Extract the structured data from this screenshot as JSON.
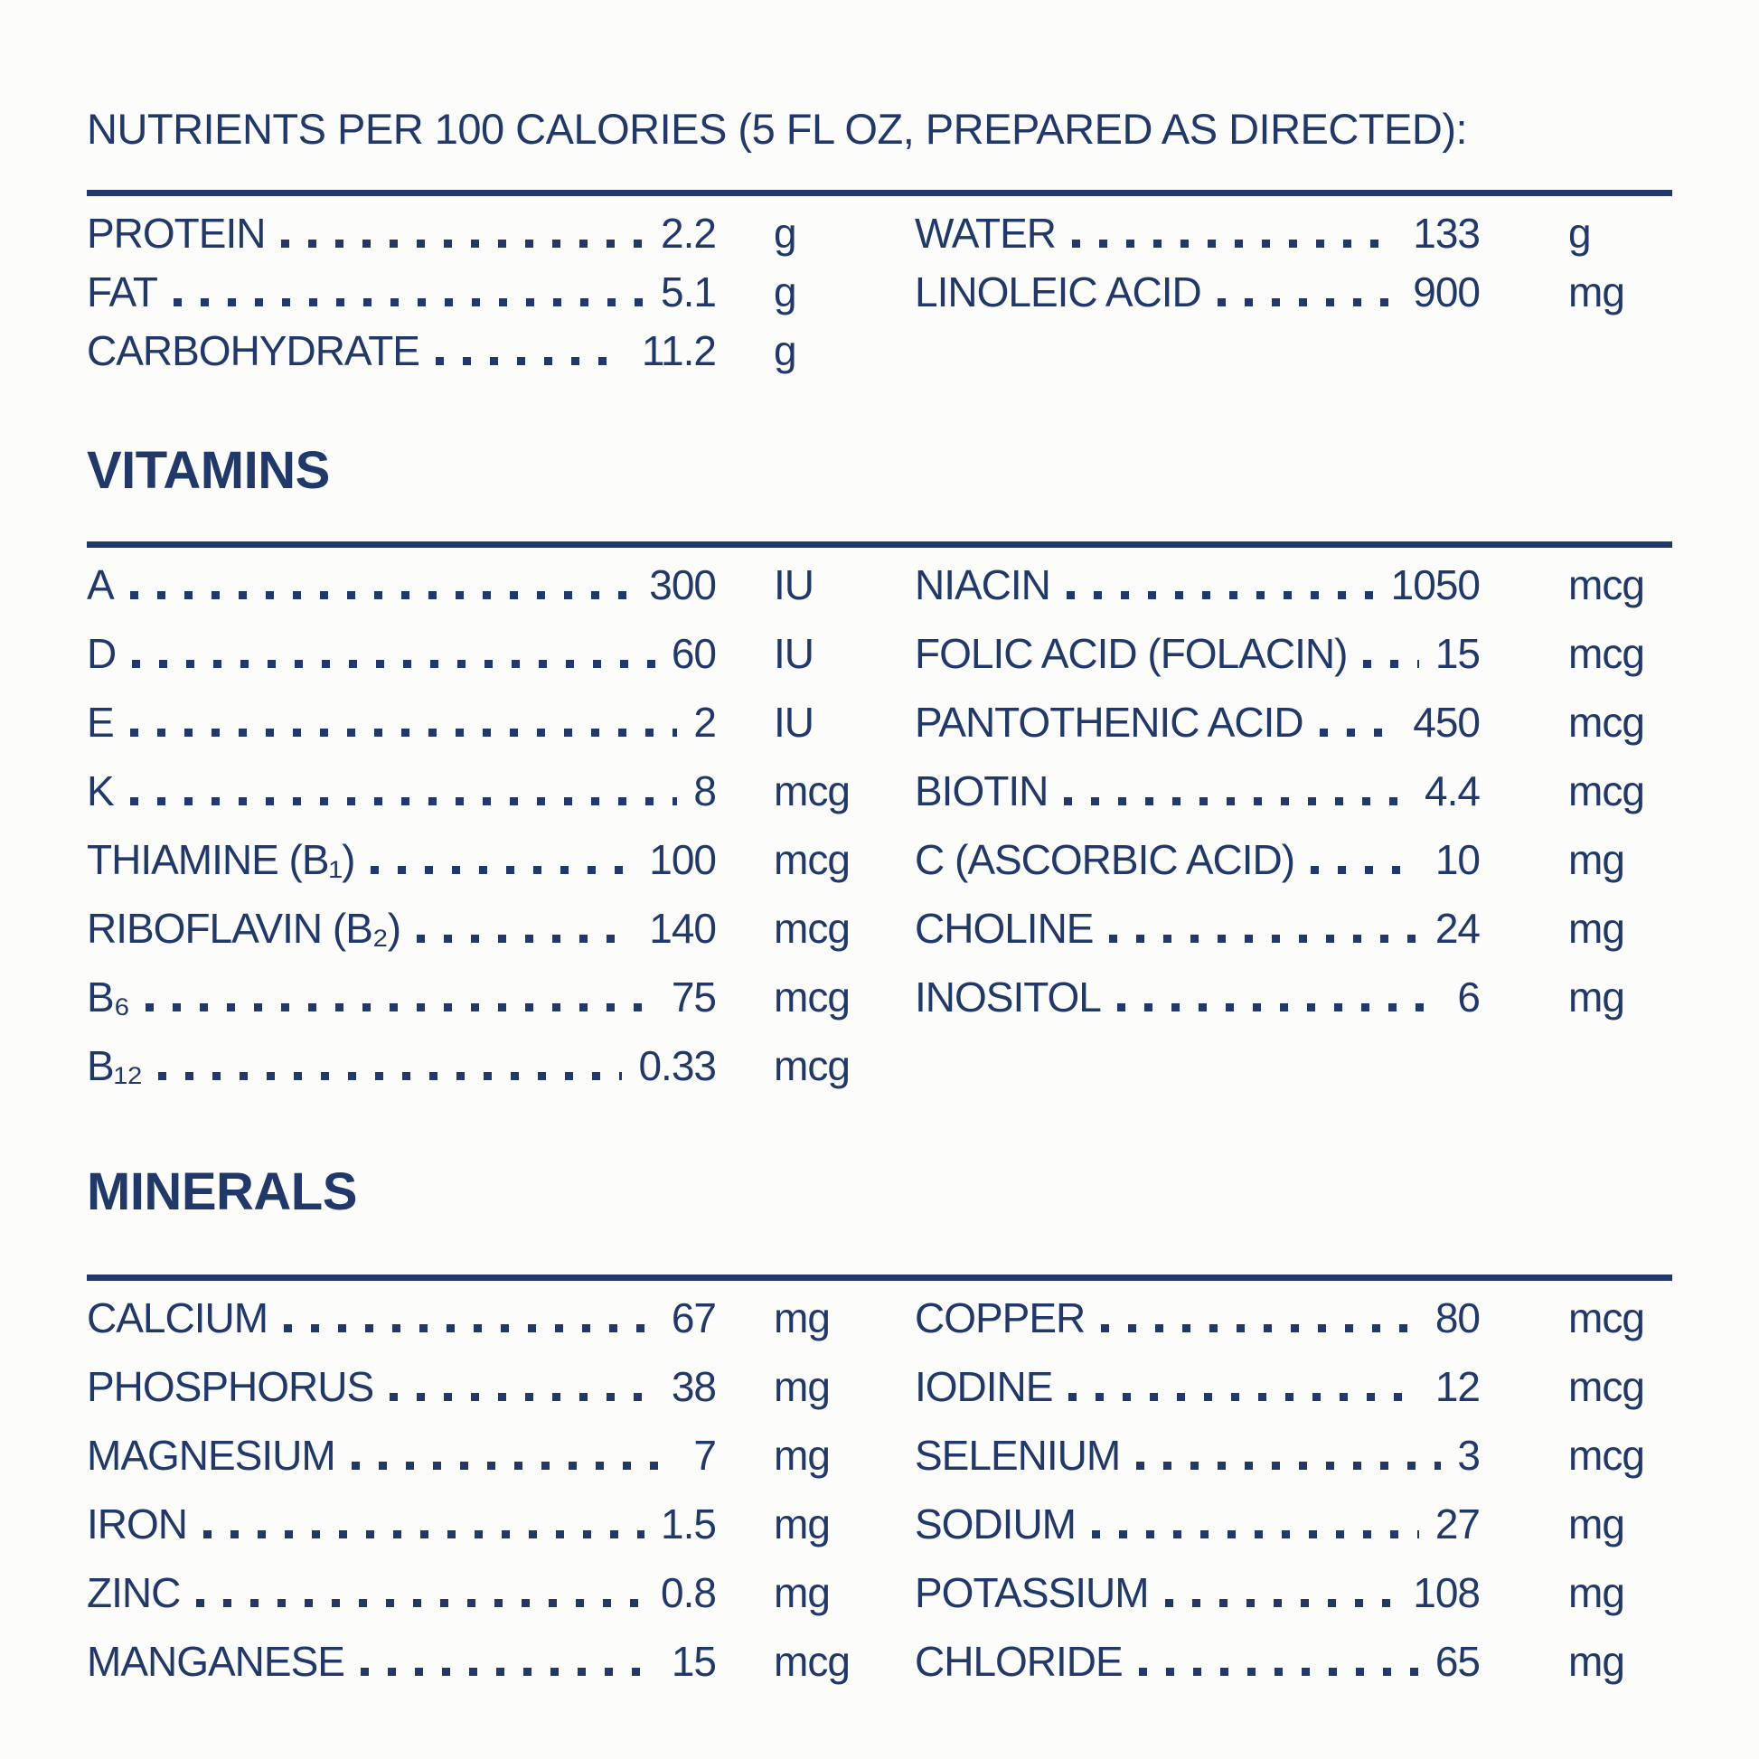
{
  "page": {
    "title": "NUTRIENTS PER 100 CALORIES (5 FL OZ, PREPARED AS DIRECTED):",
    "ink_color": "#21386b",
    "background_color": "#fcfcfa"
  },
  "macronutrients": {
    "left": [
      {
        "label": "PROTEIN",
        "value": "2.2",
        "unit": "g"
      },
      {
        "label": "FAT",
        "value": "5.1",
        "unit": "g"
      },
      {
        "label": "CARBOHYDRATE",
        "value": "11.2",
        "unit": "g"
      }
    ],
    "right": [
      {
        "label": "WATER",
        "value": "133",
        "unit": "g"
      },
      {
        "label": "LINOLEIC ACID",
        "value": "900",
        "unit": "mg"
      }
    ]
  },
  "vitamins": {
    "heading": "VITAMINS",
    "left": [
      {
        "label": "A",
        "value": "300",
        "unit": "IU"
      },
      {
        "label": "D",
        "value": "60",
        "unit": "IU"
      },
      {
        "label": "E",
        "value": "2",
        "unit": "IU"
      },
      {
        "label": "K",
        "value": "8",
        "unit": "mcg"
      },
      {
        "label": "THIAMINE (B₁)",
        "value": "100",
        "unit": "mcg"
      },
      {
        "label": "RIBOFLAVIN (B₂)",
        "value": "140",
        "unit": "mcg"
      },
      {
        "label": "B₆",
        "value": "75",
        "unit": "mcg"
      },
      {
        "label": "B₁₂",
        "value": "0.33",
        "unit": "mcg"
      }
    ],
    "right": [
      {
        "label": "NIACIN",
        "value": "1050",
        "unit": "mcg"
      },
      {
        "label": "FOLIC ACID (FOLACIN)",
        "value": "15",
        "unit": "mcg"
      },
      {
        "label": "PANTOTHENIC ACID",
        "value": "450",
        "unit": "mcg"
      },
      {
        "label": "BIOTIN",
        "value": "4.4",
        "unit": "mcg"
      },
      {
        "label": "C (ASCORBIC ACID)",
        "value": "10",
        "unit": "mg"
      },
      {
        "label": "CHOLINE",
        "value": "24",
        "unit": "mg"
      },
      {
        "label": "INOSITOL",
        "value": "6",
        "unit": "mg"
      }
    ]
  },
  "minerals": {
    "heading": "MINERALS",
    "left": [
      {
        "label": "CALCIUM",
        "value": "67",
        "unit": "mg"
      },
      {
        "label": "PHOSPHORUS",
        "value": "38",
        "unit": "mg"
      },
      {
        "label": "MAGNESIUM",
        "value": "7",
        "unit": "mg"
      },
      {
        "label": "IRON",
        "value": "1.5",
        "unit": "mg"
      },
      {
        "label": "ZINC",
        "value": "0.8",
        "unit": "mg"
      },
      {
        "label": "MANGANESE",
        "value": "15",
        "unit": "mcg"
      }
    ],
    "right": [
      {
        "label": "COPPER",
        "value": "80",
        "unit": "mcg"
      },
      {
        "label": "IODINE",
        "value": "12",
        "unit": "mcg"
      },
      {
        "label": "SELENIUM",
        "value": "3",
        "unit": "mcg"
      },
      {
        "label": "SODIUM",
        "value": "27",
        "unit": "mg"
      },
      {
        "label": "POTASSIUM",
        "value": "108",
        "unit": "mg"
      },
      {
        "label": "CHLORIDE",
        "value": "65",
        "unit": "mg"
      }
    ]
  }
}
